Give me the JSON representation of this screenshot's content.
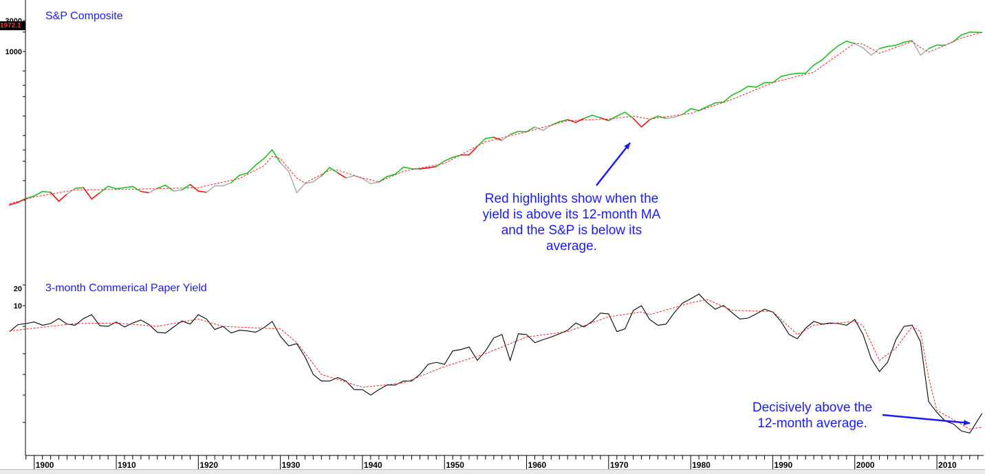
{
  "chart_data": [
    {
      "type": "line",
      "title": "S&P Composite",
      "y_scale": "log",
      "ylim": [
        3,
        3000
      ],
      "yticks": [
        "3000",
        "1000"
      ],
      "last_value": "1972.1",
      "x_years": [
        1897,
        1915.5
      ],
      "colors": {
        "highlight_green": "#22bb22",
        "highlight_red": "#ee1111",
        "neutral": "#b0b0b0",
        "moving_average": "#ee2222"
      },
      "series": [
        {
          "role": "price",
          "x": [
            1897,
            1898,
            1899,
            1900,
            1901,
            1902,
            1903,
            1904,
            1905,
            1906,
            1907,
            1908,
            1909,
            1910,
            1911,
            1912,
            1913,
            1914,
            1915,
            1916,
            1917,
            1918,
            1919,
            1920,
            1921,
            1922,
            1923,
            1924,
            1925,
            1926,
            1927,
            1928,
            1929,
            1930,
            1931,
            1932,
            1933,
            1934,
            1935,
            1936,
            1937,
            1938,
            1939,
            1940,
            1941,
            1942,
            1943,
            1944,
            1945,
            1946,
            1947,
            1948,
            1949,
            1950,
            1951,
            1952,
            1953,
            1954,
            1955,
            1956,
            1957,
            1958,
            1959,
            1960,
            1961,
            1962,
            1963,
            1964,
            1965,
            1966,
            1967,
            1968,
            1969,
            1970,
            1971,
            1972,
            1973,
            1974,
            1975,
            1976,
            1977,
            1978,
            1979,
            1980,
            1981,
            1982,
            1983,
            1984,
            1985,
            1986,
            1987,
            1988,
            1989,
            1990,
            1991,
            1992,
            1993,
            1994,
            1995,
            1996,
            1997,
            1998,
            1999,
            2000,
            2001,
            2002,
            2003,
            2004,
            2005,
            2006,
            2007,
            2008,
            2009,
            2010,
            2011,
            2012,
            2013,
            2014,
            2015.5
          ],
          "y": [
            4.2,
            4.6,
            5.3,
            5.8,
            6.8,
            6.6,
            4.8,
            6.2,
            7.6,
            7.8,
            5.2,
            6.5,
            8.2,
            7.5,
            7.8,
            8.1,
            6.8,
            6.5,
            7.6,
            8.5,
            6.9,
            7.2,
            8.7,
            6.9,
            6.6,
            8.3,
            8.3,
            9.3,
            12.1,
            13.1,
            17.5,
            22,
            30,
            19,
            14,
            6.5,
            9,
            9.6,
            11.8,
            16,
            13.2,
            11,
            12,
            10.8,
            9,
            9.5,
            11.6,
            12.6,
            16.2,
            15.3,
            15.2,
            15.8,
            16.5,
            20.2,
            23,
            25,
            25.1,
            34,
            45,
            47,
            42,
            52,
            58,
            57,
            68,
            60,
            72,
            82,
            88,
            80,
            92,
            103,
            94,
            85,
            100,
            115,
            92,
            68,
            88,
            100,
            92,
            96,
            106,
            130,
            122,
            140,
            160,
            165,
            210,
            242,
            290,
            280,
            330,
            330,
            410,
            440,
            460,
            460,
            615,
            740,
            970,
            1230,
            1450,
            1320,
            1140,
            880,
            1110,
            1200,
            1250,
            1390,
            1480,
            880,
            1110,
            1260,
            1250,
            1420,
            1810,
            2000,
            1972.1
          ]
        },
        {
          "role": "12-month moving average",
          "x": [
            1897,
            1900,
            1905,
            1910,
            1915,
            1920,
            1925,
            1928,
            1929,
            1930,
            1932,
            1933,
            1936,
            1937,
            1940,
            1942,
            1945,
            1950,
            1955,
            1960,
            1965,
            1970,
            1973,
            1975,
            1980,
            1985,
            1990,
            1995,
            2000,
            2001,
            2003,
            2007,
            2008,
            2009,
            2010,
            2013,
            2015.5
          ],
          "y": [
            4.4,
            5.6,
            7.2,
            7.3,
            7.5,
            7.8,
            10.8,
            17,
            24,
            22,
            11,
            9.2,
            14.5,
            14.5,
            11,
            9.6,
            14,
            18.5,
            40,
            57,
            85,
            90,
            100,
            90,
            110,
            180,
            330,
            480,
            1350,
            1300,
            940,
            1430,
            1150,
            980,
            1100,
            1620,
            1980
          ]
        }
      ],
      "highlight_legend": "Red highlights show when the yield is above its 12-month MA and the S&P is below its average."
    },
    {
      "type": "line",
      "title": "3-month Commerical Paper Yield",
      "y_scale": "log",
      "ylim": [
        0.05,
        22
      ],
      "yticks": [
        "20",
        "10"
      ],
      "x_years": [
        1897,
        1915.5
      ],
      "colors": {
        "yield": "#000000",
        "moving_average": "#ee2222"
      },
      "series": [
        {
          "role": "yield",
          "x": [
            1897,
            1898,
            1899,
            1900,
            1901,
            1902,
            1903,
            1904,
            1905,
            1906,
            1907,
            1908,
            1909,
            1910,
            1911,
            1912,
            1913,
            1914,
            1915,
            1916,
            1917,
            1918,
            1919,
            1920,
            1921,
            1922,
            1923,
            1924,
            1925,
            1926,
            1927,
            1928,
            1929,
            1930,
            1931,
            1932,
            1933,
            1934,
            1935,
            1936,
            1937,
            1938,
            1939,
            1940,
            1941,
            1942,
            1943,
            1944,
            1945,
            1946,
            1947,
            1948,
            1949,
            1950,
            1951,
            1952,
            1953,
            1954,
            1955,
            1956,
            1957,
            1958,
            1959,
            1960,
            1961,
            1962,
            1963,
            1964,
            1965,
            1966,
            1967,
            1968,
            1969,
            1970,
            1971,
            1972,
            1973,
            1974,
            1975,
            1976,
            1977,
            1978,
            1979,
            1980,
            1981,
            1982,
            1983,
            1984,
            1985,
            1986,
            1987,
            1988,
            1989,
            1990,
            1991,
            1992,
            1993,
            1994,
            1995,
            1996,
            1997,
            1998,
            1999,
            2000,
            2001,
            2002,
            2003,
            2004,
            2005,
            2006,
            2007,
            2008,
            2009,
            2010,
            2011,
            2012,
            2013,
            2014,
            2015.5
          ],
          "y": [
            4.2,
            5.3,
            5.5,
            5.8,
            5.2,
            5.5,
            6.5,
            5.4,
            5.2,
            6.5,
            7.4,
            5.1,
            5.0,
            5.8,
            4.9,
            5.6,
            6.2,
            5.3,
            4.1,
            4.0,
            4.9,
            6.0,
            5.4,
            7.4,
            6.4,
            4.5,
            5.0,
            4.0,
            4.4,
            4.3,
            4.1,
            4.8,
            5.9,
            3.6,
            2.6,
            2.8,
            1.8,
            1.0,
            0.8,
            0.8,
            0.9,
            0.8,
            0.6,
            0.6,
            0.5,
            0.6,
            0.7,
            0.7,
            0.8,
            0.8,
            1.0,
            1.4,
            1.5,
            1.4,
            2.2,
            2.3,
            2.5,
            1.6,
            2.2,
            3.4,
            3.8,
            1.6,
            3.9,
            3.8,
            2.9,
            3.2,
            3.5,
            3.9,
            4.4,
            5.6,
            4.9,
            5.9,
            7.8,
            7.6,
            4.2,
            4.6,
            8.5,
            10.0,
            6.3,
            5.2,
            5.4,
            7.9,
            10.9,
            12.6,
            14.8,
            11.1,
            8.9,
            10.1,
            8.0,
            6.4,
            6.6,
            7.6,
            8.9,
            8.1,
            5.9,
            3.8,
            3.3,
            4.7,
            5.9,
            5.4,
            5.6,
            5.5,
            5.2,
            6.3,
            3.8,
            1.7,
            1.1,
            1.5,
            3.2,
            5.0,
            5.2,
            3.0,
            0.4,
            0.28,
            0.21,
            0.19,
            0.15,
            0.14,
            0.27
          ]
        },
        {
          "role": "12-month moving average",
          "x": [
            1897,
            1905,
            1910,
            1915,
            1920,
            1923,
            1928,
            1930,
            1932,
            1935,
            1940,
            1945,
            1950,
            1955,
            1960,
            1965,
            1970,
            1974,
            1975,
            1980,
            1982,
            1985,
            1990,
            1993,
            1995,
            2000,
            2001,
            2003,
            2005,
            2007,
            2008,
            2009,
            2010,
            2012,
            2014,
            2015.5
          ],
          "y": [
            4.3,
            5.5,
            5.6,
            5.0,
            6.4,
            5.0,
            4.7,
            4.6,
            2.9,
            1.0,
            0.65,
            0.75,
            1.3,
            2.0,
            3.5,
            4.2,
            6.9,
            8.1,
            7.4,
            11.0,
            12.3,
            8.6,
            8.2,
            3.8,
            5.2,
            5.9,
            5.1,
            1.6,
            2.4,
            5.0,
            4.2,
            0.9,
            0.3,
            0.22,
            0.16,
            0.17
          ]
        }
      ]
    }
  ],
  "x_axis_labels": [
    "1900",
    "1910",
    "1920",
    "1930",
    "1940",
    "1950",
    "1960",
    "1970",
    "1980",
    "1990",
    "2000",
    "2010"
  ],
  "annotations": {
    "top": [
      "Red highlights show when the",
      "yield is above its 12-month MA",
      "and the S&P is below its",
      "average."
    ],
    "bottom": [
      "Decisively above the",
      "12-month average."
    ]
  }
}
